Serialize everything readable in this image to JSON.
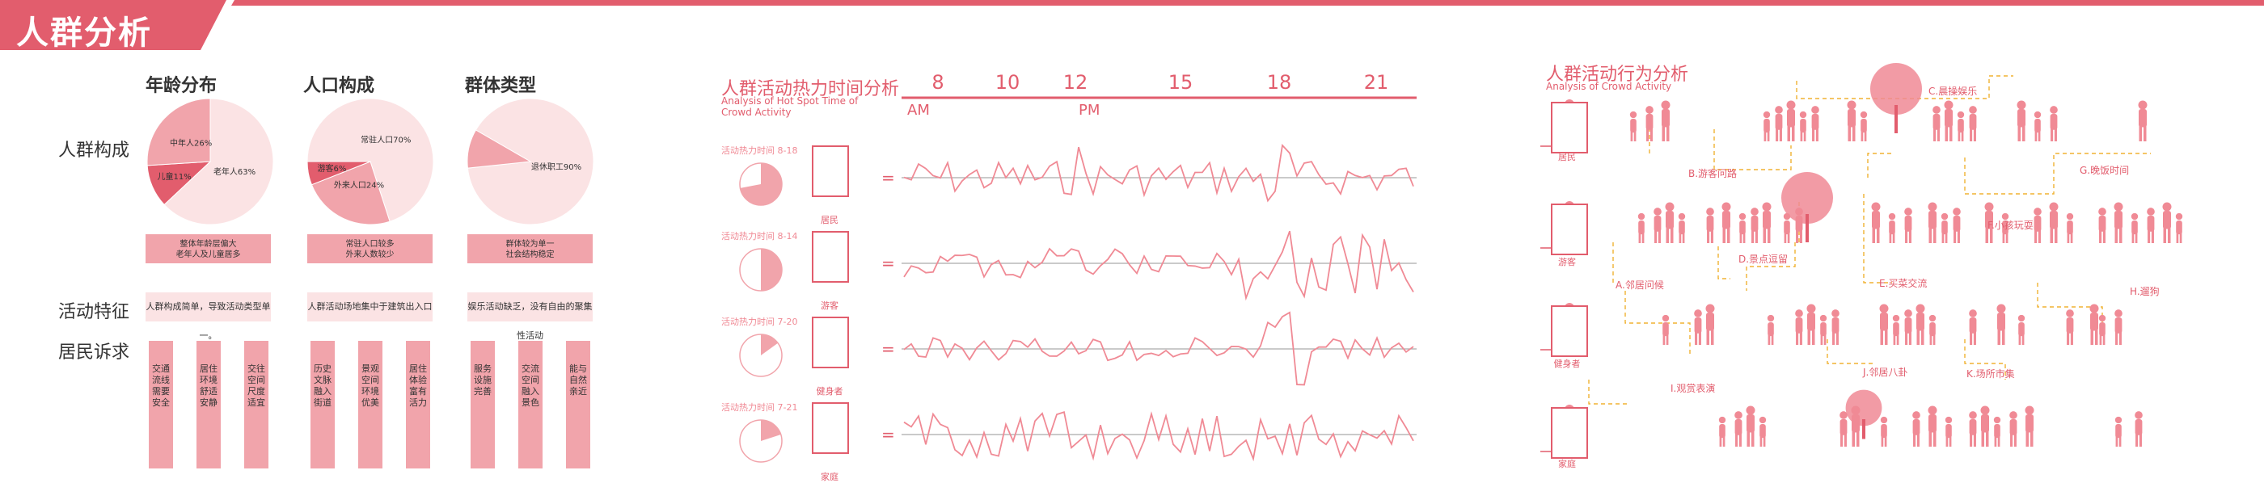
{
  "title": "人群分析",
  "colors": {
    "accent": "#e25d6d",
    "pink": "#f1a4ab",
    "light": "#fbe3e4"
  },
  "population": {
    "col_headers": [
      "年龄分布",
      "人口构成",
      "群体类型"
    ],
    "row_headers": [
      "人群构成",
      "活动特征",
      "居民诉求"
    ],
    "pies": [
      {
        "slices": [
          {
            "label": "老年人63%",
            "value": 63,
            "color": "#fbe3e4"
          },
          {
            "label": "儿童11%",
            "value": 11,
            "color": "#e25d6d"
          },
          {
            "label": "中年人26%",
            "value": 26,
            "color": "#f1a4ab"
          }
        ]
      },
      {
        "slices": [
          {
            "label": "常驻人口70%",
            "value": 70,
            "color": "#fbe3e4"
          },
          {
            "label": "外来人口24%",
            "value": 24,
            "color": "#f1a4ab"
          },
          {
            "label": "游客6%",
            "value": 6,
            "color": "#e25d6d"
          }
        ]
      },
      {
        "slices": [
          {
            "label": "退休职工90%",
            "value": 90,
            "color": "#fbe3e4"
          },
          {
            "label": "",
            "value": 10,
            "color": "#f1a4ab"
          }
        ]
      }
    ],
    "summaries": [
      "整体年龄层偏大\n老年人及儿童居多",
      "常驻人口较多\n外来人数较少",
      "群体较为单一\n社会结构稳定"
    ],
    "features": [
      "人群构成简单，导致活动类型单一。",
      "人群活动场地集中于建筑出入口",
      "娱乐活动缺乏，没有自由的聚集性活动"
    ],
    "demands": [
      [
        "交通流线需要安全",
        "居住环境舒适安静",
        "交往空间尺度适宜"
      ],
      [
        "历史文脉融入街道",
        "景观空间环境优美",
        "居住体验富有活力"
      ],
      [
        "服务设施完善",
        "交流空间融入景色",
        "能与自然亲近"
      ]
    ]
  },
  "hotspot": {
    "title": "人群活动热力时间分析",
    "subtitle": [
      "Analysis of Hot Spot Time of",
      "Crowd Activity"
    ],
    "ticks": [
      "8",
      "10",
      "12",
      "15",
      "18",
      "21"
    ],
    "am": "AM",
    "pm": "PM",
    "rows": [
      {
        "label": "活动热力时间 8-18",
        "caption": "居民"
      },
      {
        "label": "活动热力时间 8-14",
        "caption": "游客"
      },
      {
        "label": "活动热力时间 7-20",
        "caption": "健身者"
      },
      {
        "label": "活动热力时间 7-21",
        "caption": "家庭"
      }
    ],
    "eq": "="
  },
  "behavior": {
    "title": "人群活动行为分析",
    "subtitle": "Analysis of Crowd Activity",
    "groups": [
      "居民",
      "游客",
      "健身者",
      "家庭"
    ],
    "activities": [
      "C.晨操娱乐",
      "B.游客问路",
      "G.晚饭时间",
      "D.景点逗留",
      "F.小孩玩耍",
      "E.买菜交流",
      "A.邻居问候",
      "H.遛狗",
      "J.邻居八卦",
      "K.场所市集",
      "I.观赏表演"
    ]
  }
}
